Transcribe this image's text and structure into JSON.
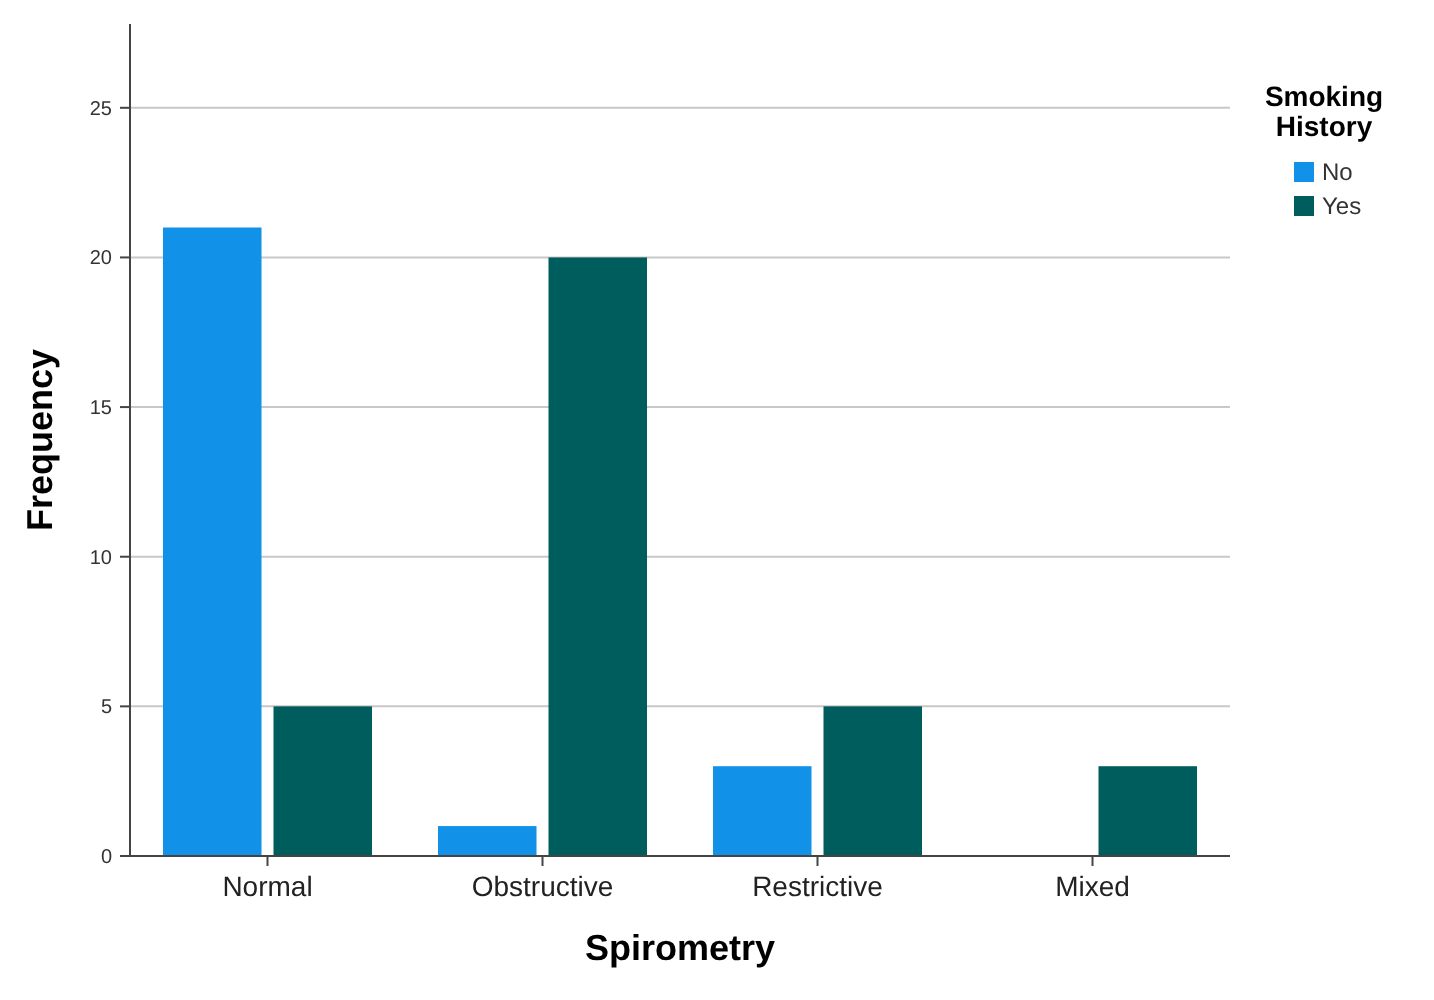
{
  "chart_data": {
    "type": "bar",
    "xlabel": "Spirometry",
    "ylabel": "Frequency",
    "legend_title": "Smoking History",
    "categories": [
      "Normal",
      "Obstructive",
      "Restrictive",
      "Mixed"
    ],
    "series": [
      {
        "name": "No",
        "color": "#1192e8",
        "values": [
          21,
          1,
          3,
          0
        ]
      },
      {
        "name": "Yes",
        "color": "#005d5d",
        "values": [
          5,
          20,
          5,
          3
        ]
      }
    ],
    "ylim": [
      0,
      27.8
    ],
    "yticks": [
      0,
      5,
      10,
      15,
      20,
      25
    ],
    "grid": "y",
    "legend": "top right"
  }
}
